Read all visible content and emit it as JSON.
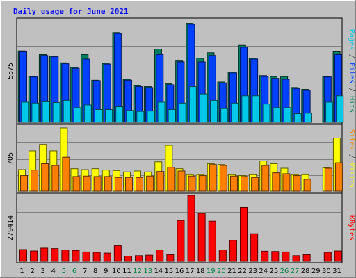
{
  "chart_data": {
    "type": "bar",
    "title": "Daily usage for June 2021",
    "x": [
      "1",
      "2",
      "3",
      "4",
      "5",
      "6",
      "7",
      "8",
      "9",
      "10",
      "11",
      "12",
      "13",
      "14",
      "15",
      "16",
      "17",
      "18",
      "19",
      "20",
      "21",
      "22",
      "23",
      "24",
      "25",
      "26",
      "27",
      "28",
      "29",
      "30",
      "31"
    ],
    "weekend_days": [
      "5",
      "6",
      "12",
      "13",
      "19",
      "20",
      "26",
      "27"
    ],
    "panels": [
      {
        "name": "hits-files-pages",
        "ymax": 5575,
        "max_label": "5575",
        "legend": [
          {
            "text": "Pages",
            "color": "#00c8e8"
          },
          {
            "text": " / ",
            "color": "#3c3c3c"
          },
          {
            "text": "Files",
            "color": "#0040ff"
          },
          {
            "text": " / ",
            "color": "#3c3c3c"
          },
          {
            "text": "Hits",
            "color": "#00805c"
          }
        ],
        "series": [
          {
            "name": "Hits",
            "color": "#008060",
            "values": [
              3900,
              2500,
              3700,
              3600,
              3250,
              3000,
              3700,
              2300,
              3200,
              4900,
              2350,
              2000,
              1950,
              4000,
              2100,
              3350,
              5400,
              3500,
              3800,
              2200,
              2750,
              4200,
              3500,
              2550,
              2500,
              2500,
              1900,
              1800,
              0,
              2500,
              3850
            ]
          },
          {
            "name": "Files",
            "color": "#0040ff",
            "values": [
              3850,
              2480,
              3650,
              3580,
              3200,
              2950,
              3450,
              2280,
              3180,
              4850,
              2300,
              1950,
              1900,
              3700,
              2050,
              3300,
              5350,
              3300,
              3650,
              2150,
              2700,
              4100,
              3450,
              2500,
              2400,
              2350,
              1850,
              1750,
              0,
              2480,
              3700
            ]
          },
          {
            "name": "Pages",
            "color": "#00c8e8",
            "values": [
              1100,
              1050,
              1120,
              1080,
              1200,
              800,
              950,
              700,
              700,
              850,
              650,
              600,
              620,
              1100,
              700,
              1050,
              1950,
              1550,
              1200,
              750,
              1050,
              1450,
              1450,
              1000,
              800,
              800,
              470,
              500,
              0,
              1100,
              1450
            ]
          }
        ]
      },
      {
        "name": "visits-sites",
        "ymax": 705,
        "max_label": "705",
        "legend": [
          {
            "text": "Sites",
            "color": "#ff8000"
          },
          {
            "text": " / ",
            "color": "#3c3c3c"
          },
          {
            "text": "Visits",
            "color": "#ffff00"
          }
        ],
        "series": [
          {
            "name": "Visits",
            "color": "#ffff00",
            "values": [
              235,
              440,
              510,
              440,
              690,
              245,
              235,
              245,
              230,
              225,
              210,
              220,
              210,
              320,
              500,
              245,
              180,
              180,
              300,
              290,
              180,
              170,
              180,
              330,
              300,
              250,
              180,
              180,
              0,
              255,
              580
            ]
          },
          {
            "name": "Sites",
            "color": "#ff8000",
            "values": [
              170,
              230,
              300,
              280,
              370,
              160,
              165,
              160,
              160,
              150,
              150,
              150,
              165,
              215,
              260,
              220,
              165,
              170,
              290,
              280,
              165,
              160,
              150,
              280,
              200,
              190,
              170,
              130,
              0,
              250,
              310
            ]
          }
        ]
      },
      {
        "name": "kbytes",
        "ymax": 279414,
        "max_label": "279414",
        "legend": [
          {
            "text": "KBytes",
            "color": "#ff0000"
          }
        ],
        "series": [
          {
            "name": "KBytes",
            "color": "#ff0000",
            "values": [
              50000,
              44000,
              56000,
              54000,
              48000,
              46000,
              40000,
              38000,
              35000,
              66000,
              22000,
              24000,
              26000,
              48000,
              28000,
              173000,
              279414,
              203000,
              170000,
              48000,
              89000,
              228000,
              117000,
              43000,
              42000,
              40000,
              24000,
              28000,
              0,
              38000,
              44000
            ]
          }
        ]
      }
    ]
  }
}
